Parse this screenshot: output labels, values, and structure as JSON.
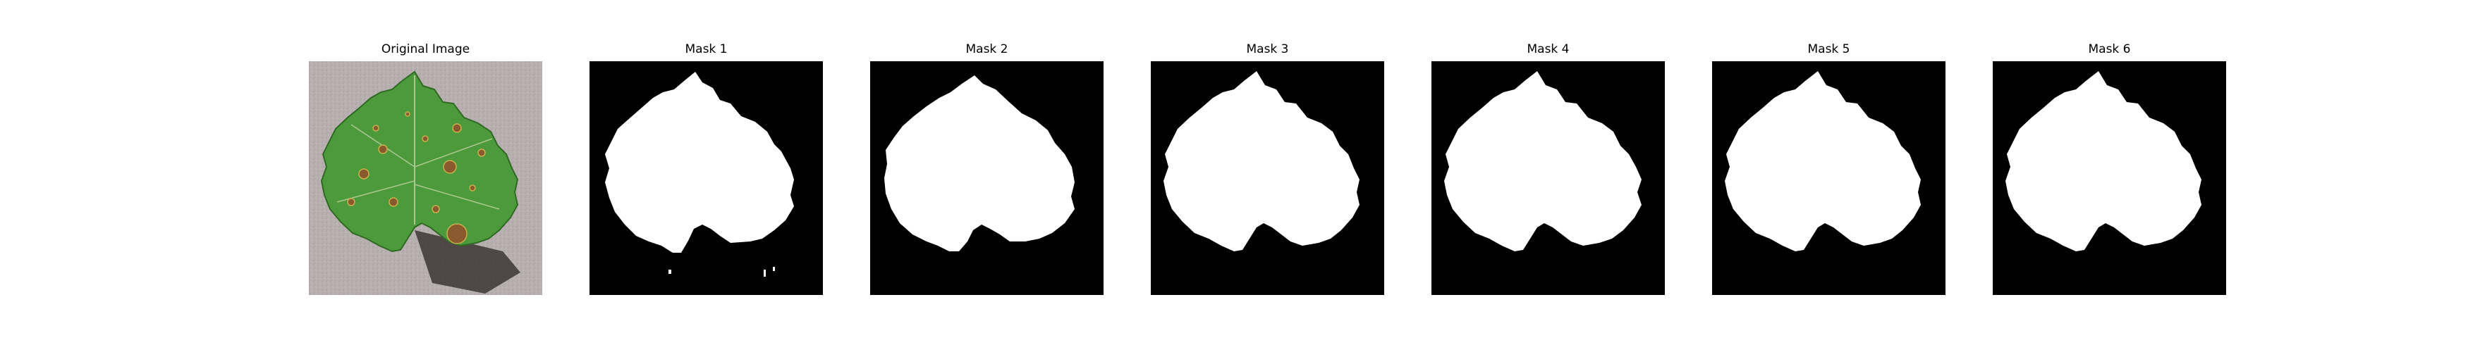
{
  "figure": {
    "panels": [
      {
        "title": "Original Image"
      },
      {
        "title": "Mask 1"
      },
      {
        "title": "Mask 2"
      },
      {
        "title": "Mask 3"
      },
      {
        "title": "Mask 4"
      },
      {
        "title": "Mask 5"
      },
      {
        "title": "Mask 6"
      }
    ],
    "colors": {
      "mask_background": "#000000",
      "mask_foreground": "#ffffff",
      "photo_background": "#b9b0b2",
      "leaf_green": "#4f9a3e",
      "leaf_dark": "#2f6e25",
      "leaf_spot": "#8a5a2e",
      "leaf_shadow": "#3a3432"
    }
  }
}
